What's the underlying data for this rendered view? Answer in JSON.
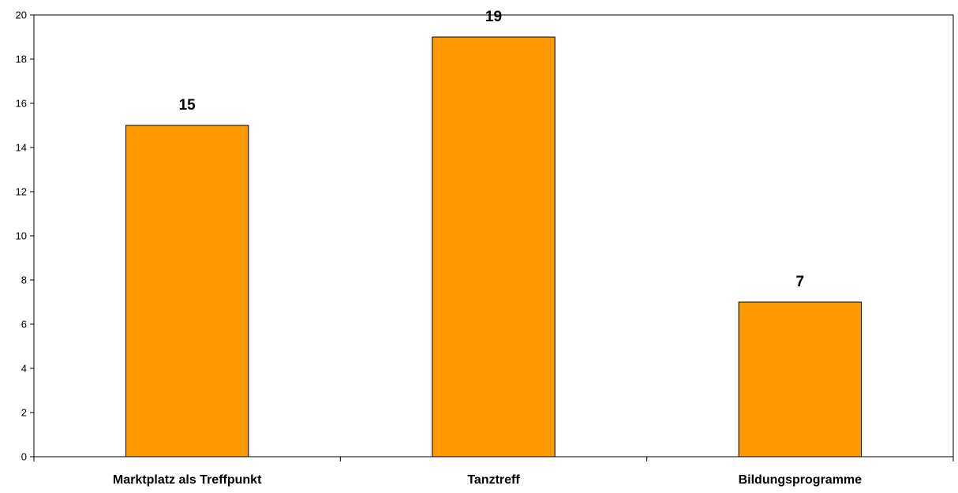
{
  "chart_data": {
    "type": "bar",
    "categories": [
      "Marktplatz als Treffpunkt",
      "Tanztreff",
      "Bildungsprogramme"
    ],
    "values": [
      15,
      19,
      7
    ],
    "data_labels": [
      "15",
      "19",
      "7"
    ],
    "title": "",
    "xlabel": "",
    "ylabel": "",
    "ylim": [
      0,
      20
    ],
    "yticks": [
      0,
      2,
      4,
      6,
      8,
      10,
      12,
      14,
      16,
      18,
      20
    ],
    "grid": false,
    "legend": "none",
    "bar_color": "#FF9900",
    "bar_edge_color": "#000000"
  }
}
